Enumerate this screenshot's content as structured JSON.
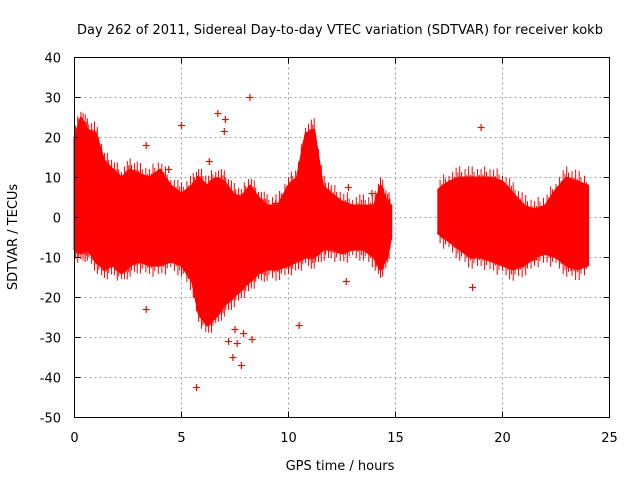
{
  "chart_data": {
    "type": "scatter",
    "title": "Day 262 of 2011, Sidereal Day-to-day VTEC variation (SDTVAR) for receiver kokb",
    "xlabel": "GPS time / hours",
    "ylabel": "SDTVAR / TECUs",
    "xlim": [
      0,
      25
    ],
    "ylim": [
      -50,
      40
    ],
    "x_ticks": [
      "0",
      "5",
      "10",
      "15",
      "20",
      "25"
    ],
    "x_tick_values": [
      0,
      5,
      10,
      15,
      20,
      25
    ],
    "y_ticks": [
      "-50",
      "-40",
      "-30",
      "-20",
      "-10",
      "0",
      "10",
      "20",
      "30",
      "40"
    ],
    "y_tick_values": [
      -50,
      -40,
      -30,
      -20,
      -10,
      0,
      10,
      20,
      30,
      40
    ],
    "grid": true,
    "marker": "+",
    "series": [
      {
        "name": "SDTVAR",
        "color": "#ff0000",
        "envelope": {
          "x": [
            0.0,
            0.3,
            0.6,
            1.0,
            1.4,
            1.8,
            2.2,
            2.6,
            3.0,
            3.5,
            4.0,
            4.5,
            5.0,
            5.5,
            5.8,
            6.2,
            6.6,
            7.0,
            7.4,
            7.8,
            8.2,
            8.6,
            9.0,
            9.5,
            10.0,
            10.4,
            10.8,
            11.2,
            11.6,
            12.0,
            12.5,
            13.0,
            13.5,
            14.0,
            14.3,
            14.6,
            14.8
          ],
          "upper": [
            20.0,
            25.0,
            22.0,
            21.0,
            14.0,
            12.0,
            10.0,
            12.0,
            11.0,
            10.0,
            12.0,
            8.0,
            6.0,
            8.0,
            10.0,
            8.0,
            10.0,
            9.0,
            6.0,
            5.0,
            8.0,
            5.0,
            3.0,
            3.0,
            8.0,
            10.0,
            21.0,
            22.0,
            8.0,
            6.0,
            4.0,
            3.0,
            3.0,
            3.0,
            8.0,
            4.0,
            3.0
          ],
          "lower": [
            -8.0,
            -9.0,
            -8.0,
            -11.0,
            -13.0,
            -12.0,
            -14.0,
            -12.0,
            -11.0,
            -12.0,
            -12.0,
            -11.0,
            -12.0,
            -16.0,
            -24.0,
            -27.0,
            -25.0,
            -22.0,
            -20.0,
            -18.0,
            -16.0,
            -14.0,
            -13.0,
            -13.0,
            -12.0,
            -11.0,
            -10.0,
            -10.0,
            -8.0,
            -8.0,
            -9.0,
            -8.0,
            -8.0,
            -10.0,
            -13.0,
            -10.0,
            -5.0
          ]
        },
        "envelope2": {
          "x": [
            17.0,
            17.5,
            18.0,
            18.5,
            19.0,
            19.5,
            20.0,
            20.5,
            21.0,
            21.5,
            22.0,
            22.5,
            23.0,
            23.5,
            24.0
          ],
          "upper": [
            7.0,
            9.0,
            10.0,
            10.0,
            10.0,
            10.0,
            9.0,
            6.0,
            3.0,
            2.0,
            3.0,
            7.0,
            10.0,
            9.0,
            8.0
          ],
          "lower": [
            -4.0,
            -6.0,
            -8.0,
            -10.0,
            -10.0,
            -11.0,
            -12.0,
            -13.0,
            -12.0,
            -10.0,
            -9.0,
            -10.0,
            -12.0,
            -13.0,
            -12.0
          ]
        },
        "outliers": [
          {
            "x": 3.35,
            "y": -23.0
          },
          {
            "x": 3.35,
            "y": 18.0
          },
          {
            "x": 5.0,
            "y": 23.0
          },
          {
            "x": 5.7,
            "y": -42.5
          },
          {
            "x": 6.7,
            "y": 26.0
          },
          {
            "x": 7.0,
            "y": 21.5
          },
          {
            "x": 7.05,
            "y": 24.5
          },
          {
            "x": 7.2,
            "y": -31.0
          },
          {
            "x": 7.4,
            "y": -35.0
          },
          {
            "x": 7.6,
            "y": -31.5
          },
          {
            "x": 7.8,
            "y": -37.0
          },
          {
            "x": 8.2,
            "y": 30.0
          },
          {
            "x": 8.3,
            "y": -30.5
          },
          {
            "x": 10.5,
            "y": -27.0
          },
          {
            "x": 12.7,
            "y": -16.0
          },
          {
            "x": 12.8,
            "y": 7.5
          },
          {
            "x": 13.9,
            "y": 6.0
          },
          {
            "x": 18.6,
            "y": -17.5
          },
          {
            "x": 19.0,
            "y": 22.5
          },
          {
            "x": 17.1,
            "y": -4.0
          },
          {
            "x": 6.3,
            "y": 14.0
          },
          {
            "x": 7.9,
            "y": -29.0
          },
          {
            "x": 7.5,
            "y": -28.0
          },
          {
            "x": 4.4,
            "y": 12.0
          },
          {
            "x": 11.0,
            "y": 15.0
          },
          {
            "x": 14.1,
            "y": -5.0
          },
          {
            "x": 2.1,
            "y": -12.0
          },
          {
            "x": 9.4,
            "y": 3.5
          },
          {
            "x": 23.2,
            "y": -12.5
          },
          {
            "x": 21.5,
            "y": -10.5
          }
        ]
      }
    ]
  }
}
